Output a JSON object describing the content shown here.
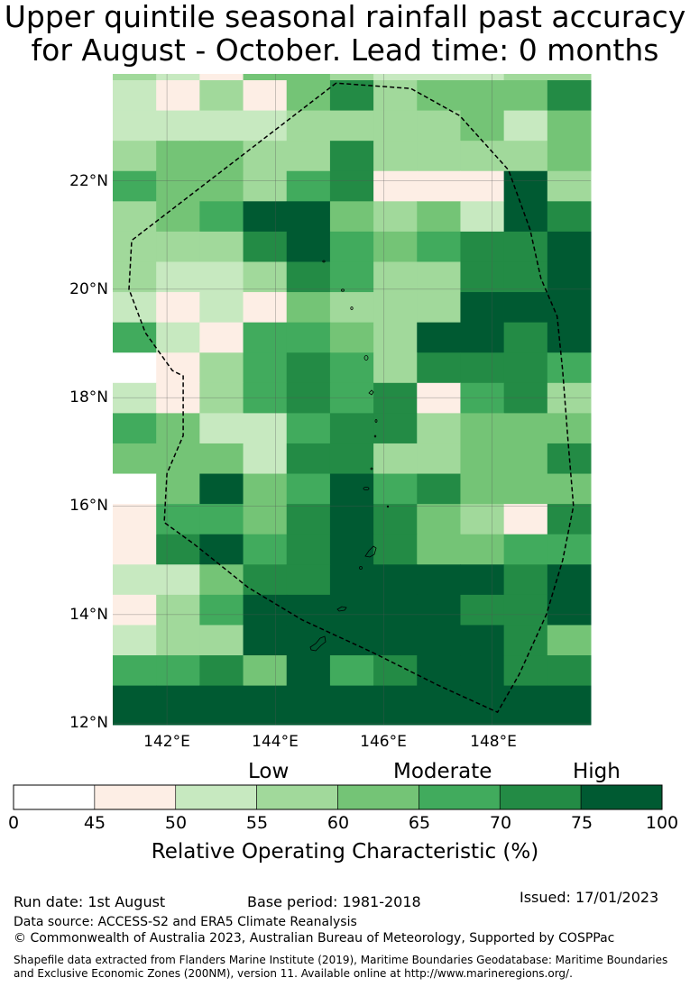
{
  "title": "Upper quintile seasonal rainfall past accuracy\nfor August - October. Lead time: 0 months",
  "map": {
    "lat_labels": [
      "22°N",
      "20°N",
      "18°N",
      "16°N",
      "14°N",
      "12°N"
    ],
    "lon_labels": [
      "142°E",
      "144°E",
      "146°E",
      "148°E"
    ],
    "colors": [
      "#ffffff",
      "#fdeee5",
      "#c7e9c0",
      "#a1d99b",
      "#74c476",
      "#41ab5d",
      "#238b45",
      "#005a32"
    ],
    "grid_class_rows": [
      "32144322233",
      "21314634446",
      "22223333424",
      "34433633334",
      "54435611173",
      "34577434276",
      "33367545667",
      "32236533667",
      "21214333777",
      "52155437767",
      "01356536665",
      "21356561563",
      "54225663444",
      "44426633446",
      "04745756444",
      "15546764316",
      "16756764455",
      "22466777767",
      "13577777667",
      "23377777764",
      "55647567766",
      "77777777777"
    ],
    "eez_boundary": [
      [
        145.12,
        23.8
      ],
      [
        141.35,
        20.9
      ],
      [
        141.3,
        20.0
      ],
      [
        141.6,
        19.2
      ],
      [
        142.1,
        18.5
      ],
      [
        142.3,
        18.4
      ],
      [
        142.3,
        17.3
      ],
      [
        142.0,
        16.6
      ],
      [
        141.95,
        15.7
      ],
      [
        142.5,
        15.3
      ],
      [
        143.5,
        14.5
      ],
      [
        144.5,
        13.9
      ],
      [
        145.8,
        13.3
      ],
      [
        147.0,
        12.7
      ],
      [
        148.1,
        12.2
      ],
      [
        148.5,
        12.9
      ],
      [
        149.0,
        14.0
      ],
      [
        149.3,
        15.0
      ],
      [
        149.5,
        16.0
      ],
      [
        149.4,
        17.2
      ],
      [
        149.3,
        18.5
      ],
      [
        149.2,
        19.5
      ],
      [
        148.9,
        20.2
      ],
      [
        148.7,
        21.1
      ],
      [
        148.3,
        22.2
      ],
      [
        147.4,
        23.2
      ],
      [
        146.5,
        23.7
      ],
      [
        145.12,
        23.8
      ]
    ]
  },
  "legend": {
    "categories": [
      "Low",
      "Moderate",
      "High"
    ],
    "tick_labels": [
      "0",
      "45",
      "50",
      "55",
      "60",
      "65",
      "70",
      "75",
      "100"
    ],
    "title": "Relative Operating Characteristic (%)"
  },
  "footer": {
    "run_date": "Run date: 1st August",
    "base_period": "Base period: 1981-2018",
    "issued": "Issued: 17/01/2023",
    "data_source": "Data source: ACCESS-S2 and ERA5 Climate Reanalysis",
    "copyright": "© Commonwealth of Australia 2023, Australian Bureau of Meteorology, Supported by COSPPac",
    "shapefile_line1": "Shapefile data extracted from Flanders Marine Institute (2019), Maritime Boundaries Geodatabase: Maritime Boundaries",
    "shapefile_line2": "and Exclusive Economic Zones (200NM), version 11. Available online at http://www.marineregions.org/."
  }
}
